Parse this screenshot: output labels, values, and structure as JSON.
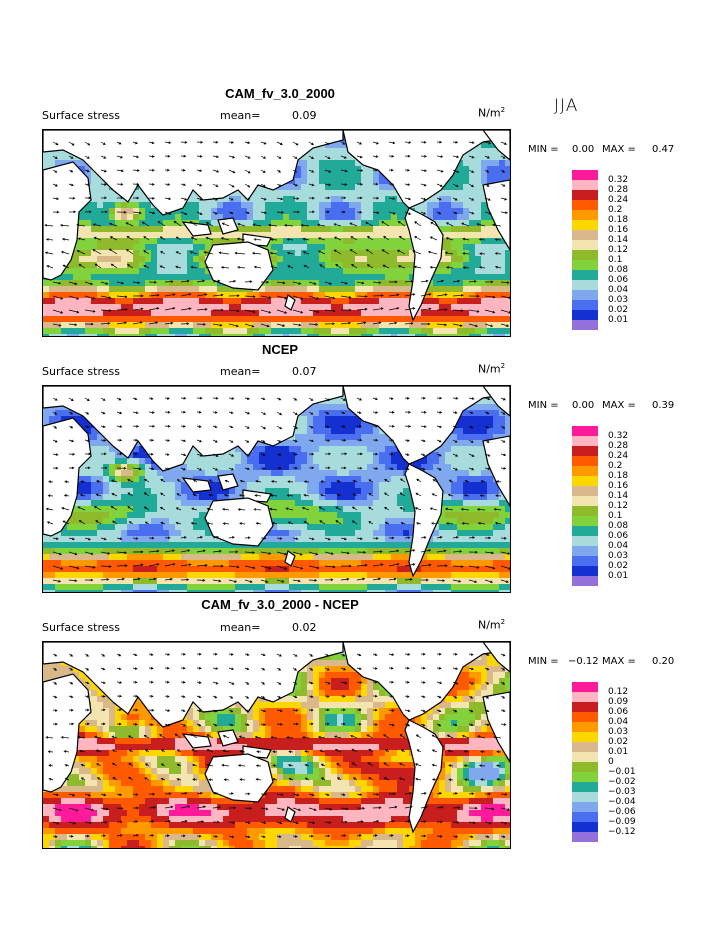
{
  "season": "JJA",
  "panels": [
    {
      "title": "CAM_fv_3.0_2000",
      "field_label": "Surface stress",
      "mean_label": "mean=",
      "mean_value": "0.09",
      "units": "N/m",
      "units_exp": "2",
      "min_label": "MIN =",
      "min_value": "0.00",
      "max_label": "MAX =",
      "max_value": "0.47",
      "colorbar": {
        "labels": [
          "0.32",
          "0.28",
          "0.24",
          "0.2",
          "0.18",
          "0.16",
          "0.14",
          "0.12",
          "0.1",
          "0.08",
          "0.06",
          "0.04",
          "0.03",
          "0.02",
          "0.01"
        ],
        "colors": [
          "#ff1a9c",
          "#ffb6c1",
          "#c81e1e",
          "#ff5a00",
          "#ff9900",
          "#ffd700",
          "#d9b98a",
          "#f3e4b0",
          "#8fba2c",
          "#82d23c",
          "#22aa99",
          "#a8dcdc",
          "#7fa8ee",
          "#4a6ef0",
          "#1530d0",
          "#9370db"
        ]
      }
    },
    {
      "title": "NCEP",
      "field_label": "Surface stress",
      "mean_label": "mean=",
      "mean_value": "0.07",
      "units": "N/m",
      "units_exp": "2",
      "min_label": "MIN =",
      "min_value": "0.00",
      "max_label": "MAX =",
      "max_value": "0.39",
      "colorbar": {
        "labels": [
          "0.32",
          "0.28",
          "0.24",
          "0.2",
          "0.18",
          "0.16",
          "0.14",
          "0.12",
          "0.1",
          "0.08",
          "0.06",
          "0.04",
          "0.03",
          "0.02",
          "0.01"
        ],
        "colors": [
          "#ff1a9c",
          "#ffb6c1",
          "#c81e1e",
          "#ff5a00",
          "#ff9900",
          "#ffd700",
          "#d9b98a",
          "#f3e4b0",
          "#8fba2c",
          "#82d23c",
          "#22aa99",
          "#a8dcdc",
          "#7fa8ee",
          "#4a6ef0",
          "#1530d0",
          "#9370db"
        ]
      }
    },
    {
      "title": "CAM_fv_3.0_2000 - NCEP",
      "field_label": "Surface stress",
      "mean_label": "mean=",
      "mean_value": "0.02",
      "units": "N/m",
      "units_exp": "2",
      "min_label": "MIN =",
      "min_value": "−0.12",
      "max_label": "MAX =",
      "max_value": "0.20",
      "colorbar": {
        "labels": [
          "0.12",
          "0.09",
          "0.06",
          "0.04",
          "0.03",
          "0.02",
          "0.01",
          "0",
          "−0.01",
          "−0.02",
          "−0.03",
          "−0.04",
          "−0.06",
          "−0.09",
          "−0.12"
        ],
        "colors": [
          "#ff1a9c",
          "#ffb6c1",
          "#c81e1e",
          "#ff5a00",
          "#ff9900",
          "#ffd700",
          "#d9b98a",
          "#f3e4b0",
          "#8fba2c",
          "#82d23c",
          "#22aa99",
          "#a8dcdc",
          "#7fa8ee",
          "#4a6ef0",
          "#1530d0",
          "#9370db"
        ]
      }
    }
  ]
}
